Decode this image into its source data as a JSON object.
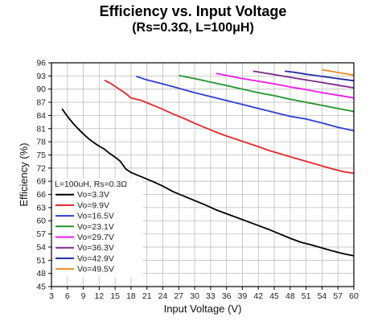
{
  "chart_data": {
    "type": "line",
    "title": "Efficiency vs. Input Voltage",
    "subtitle": "(Rs=0.3Ω, L=100μH)",
    "xlabel": "Input Voltage (V)",
    "ylabel": "Efficiency (%)",
    "xlim": [
      3,
      60
    ],
    "ylim": [
      45,
      96
    ],
    "xticks": [
      3,
      6,
      9,
      12,
      15,
      18,
      21,
      24,
      27,
      30,
      33,
      36,
      39,
      42,
      45,
      48,
      51,
      54,
      57,
      60
    ],
    "yticks": [
      45,
      48,
      51,
      54,
      57,
      60,
      63,
      66,
      69,
      72,
      75,
      78,
      81,
      84,
      87,
      90,
      93,
      96
    ],
    "grid": true,
    "legend": {
      "title": "L=100uH, Rs=0.3Ω",
      "placement": "bottom-left"
    },
    "series": [
      {
        "name": "Vo=3.3V",
        "color": "#000000",
        "x": [
          5,
          6,
          7,
          8,
          9,
          10,
          11,
          12,
          13,
          14,
          15,
          16,
          17,
          18,
          20,
          22,
          24,
          26,
          28,
          30,
          32,
          34,
          36,
          38,
          40,
          42,
          44,
          46,
          48,
          50,
          52,
          54,
          56,
          58,
          60
        ],
        "y": [
          85.5,
          83.8,
          82.3,
          81.0,
          79.8,
          78.7,
          77.8,
          77.0,
          76.3,
          75.3,
          74.5,
          73.5,
          71.8,
          71.0,
          70.0,
          69.0,
          67.9,
          66.6,
          65.6,
          64.6,
          63.6,
          62.5,
          61.6,
          60.7,
          59.8,
          58.9,
          58.0,
          57.0,
          56.0,
          55.1,
          54.5,
          53.8,
          53.1,
          52.5,
          52.0
        ]
      },
      {
        "name": "Vo=9.9V",
        "color": "#e8242a",
        "x": [
          13,
          14,
          15,
          16,
          17,
          18,
          20,
          22,
          24,
          26,
          28,
          30,
          32,
          34,
          36,
          38,
          40,
          42,
          44,
          46,
          48,
          50,
          52,
          54,
          56,
          58,
          60
        ],
        "y": [
          92.0,
          91.4,
          90.6,
          89.8,
          89.0,
          88.0,
          87.4,
          86.4,
          85.4,
          84.3,
          83.3,
          82.2,
          81.2,
          80.2,
          79.3,
          78.5,
          77.7,
          76.9,
          76.0,
          75.3,
          74.6,
          73.9,
          73.2,
          72.5,
          71.8,
          71.2,
          70.8
        ]
      },
      {
        "name": "Vo=16.5V",
        "color": "#2e3ed6",
        "x": [
          19,
          21,
          24,
          27,
          30,
          33,
          36,
          39,
          42,
          45,
          48,
          51,
          54,
          57,
          60
        ],
        "y": [
          92.9,
          92.1,
          91.2,
          90.2,
          89.2,
          88.3,
          87.4,
          86.5,
          85.6,
          84.7,
          83.8,
          83.2,
          82.3,
          81.3,
          80.5
        ]
      },
      {
        "name": "Vo=23.1V",
        "color": "#21942b",
        "x": [
          27,
          30,
          33,
          36,
          39,
          42,
          45,
          48,
          51,
          54,
          57,
          60
        ],
        "y": [
          93.1,
          92.4,
          91.6,
          90.8,
          90.0,
          89.2,
          88.5,
          87.7,
          87.0,
          86.3,
          85.6,
          84.9
        ]
      },
      {
        "name": "Vo=29.7V",
        "color": "#ee18ee",
        "x": [
          34,
          36,
          39,
          42,
          45,
          48,
          51,
          54,
          57,
          60
        ],
        "y": [
          93.6,
          93.1,
          92.4,
          91.8,
          91.2,
          90.5,
          89.9,
          89.2,
          88.6,
          88.0
        ]
      },
      {
        "name": "Vo=36.3V",
        "color": "#7d2a8c",
        "x": [
          41,
          43,
          45,
          48,
          51,
          54,
          57,
          60
        ],
        "y": [
          94.1,
          93.7,
          93.3,
          92.7,
          92.1,
          91.5,
          90.9,
          90.3
        ]
      },
      {
        "name": "Vo=42.9V",
        "color": "#1b2aa6",
        "x": [
          47,
          49,
          51,
          54,
          57,
          60
        ],
        "y": [
          94.1,
          93.8,
          93.4,
          92.9,
          92.4,
          91.9
        ]
      },
      {
        "name": "Vo=49.5V",
        "color": "#f08a24",
        "x": [
          54,
          56,
          58,
          60
        ],
        "y": [
          94.4,
          94.0,
          93.6,
          93.2
        ]
      }
    ]
  }
}
